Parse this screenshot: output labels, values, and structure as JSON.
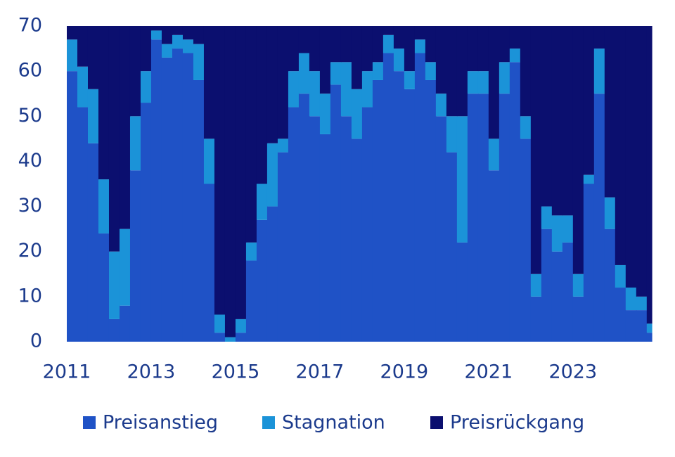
{
  "chart_data": {
    "type": "stacked-step-area",
    "x": [
      2011,
      2011.25,
      2011.5,
      2011.75,
      2012,
      2012.25,
      2012.5,
      2012.75,
      2013,
      2013.25,
      2013.5,
      2013.75,
      2014,
      2014.25,
      2014.5,
      2014.75,
      2015,
      2015.25,
      2015.5,
      2015.75,
      2016,
      2016.25,
      2016.5,
      2016.75,
      2017,
      2017.25,
      2017.5,
      2017.75,
      2018,
      2018.25,
      2018.5,
      2018.75,
      2019,
      2019.25,
      2019.5,
      2019.75,
      2020,
      2020.25,
      2020.5,
      2020.75,
      2021,
      2021.25,
      2021.5,
      2021.75,
      2022,
      2022.25,
      2022.5,
      2022.75,
      2023,
      2023.25,
      2023.5,
      2023.75,
      2024,
      2024.25,
      2024.5,
      2024.75
    ],
    "series": [
      {
        "name": "Preisanstieg",
        "color": "#1f52c6",
        "values": [
          60,
          52,
          44,
          24,
          5,
          8,
          38,
          53,
          67,
          63,
          65,
          64,
          58,
          35,
          2,
          0,
          2,
          18,
          27,
          30,
          42,
          52,
          55,
          50,
          46,
          57,
          50,
          45,
          52,
          58,
          64,
          60,
          56,
          64,
          58,
          50,
          42,
          22,
          55,
          55,
          38,
          55,
          62,
          45,
          10,
          25,
          20,
          22,
          10,
          35,
          55,
          25,
          12,
          7,
          7,
          2
        ]
      },
      {
        "name": "Stagnation",
        "color": "#1b93d8",
        "values": [
          7,
          9,
          12,
          12,
          15,
          17,
          12,
          7,
          2,
          3,
          3,
          3,
          8,
          10,
          4,
          1,
          3,
          4,
          8,
          14,
          3,
          8,
          9,
          10,
          9,
          5,
          12,
          11,
          8,
          4,
          4,
          5,
          4,
          3,
          4,
          5,
          8,
          28,
          5,
          5,
          7,
          7,
          3,
          5,
          5,
          5,
          8,
          6,
          5,
          2,
          10,
          7,
          5,
          5,
          3,
          2
        ]
      },
      {
        "name": "Preisrückgang",
        "color": "#0b0f6f",
        "values": [
          3,
          9,
          14,
          34,
          50,
          45,
          20,
          10,
          1,
          4,
          2,
          3,
          4,
          25,
          64,
          69,
          65,
          48,
          35,
          26,
          25,
          10,
          6,
          10,
          15,
          8,
          8,
          14,
          10,
          8,
          2,
          5,
          10,
          3,
          8,
          15,
          20,
          20,
          10,
          10,
          25,
          8,
          5,
          20,
          55,
          40,
          42,
          42,
          55,
          33,
          5,
          38,
          53,
          58,
          60,
          66
        ]
      }
    ],
    "xlim": [
      2011,
      2024.87
    ],
    "xticks": [
      2011,
      2013,
      2015,
      2017,
      2019,
      2021,
      2023
    ],
    "ylim": [
      0,
      70
    ],
    "yticks": [
      0,
      10,
      20,
      30,
      40,
      50,
      60,
      70
    ],
    "legend": "bottom"
  }
}
